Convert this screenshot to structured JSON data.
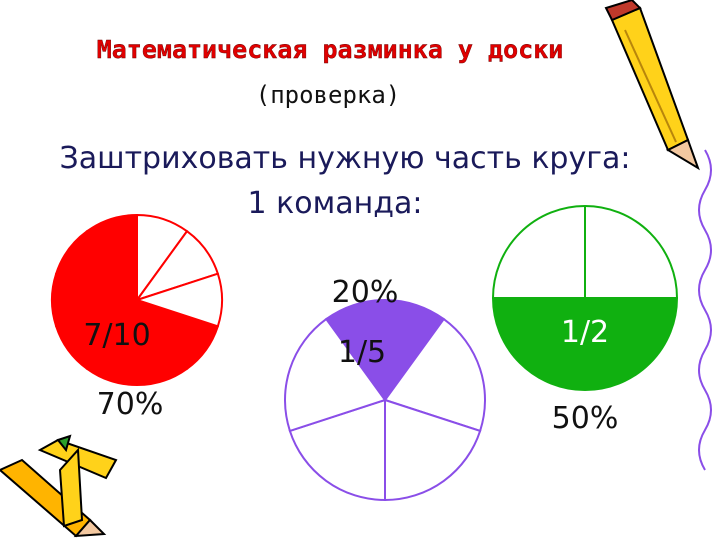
{
  "header": {
    "title": "Математическая разминка у доски",
    "subtitle": "(проверка)"
  },
  "task": "Заштриховать нужную часть круга:",
  "team": "1 команда:",
  "circles": [
    {
      "fraction": "7/10",
      "percent": "70%",
      "sectors": 10,
      "shaded": 7,
      "color": "#ff0000"
    },
    {
      "fraction": "1/5",
      "percent": "20%",
      "sectors": 5,
      "shaded": 1,
      "color": "#8a4ee8"
    },
    {
      "fraction": "1/2",
      "percent": "50%",
      "sectors": 2,
      "shaded": 1,
      "color": "#10b010"
    }
  ]
}
